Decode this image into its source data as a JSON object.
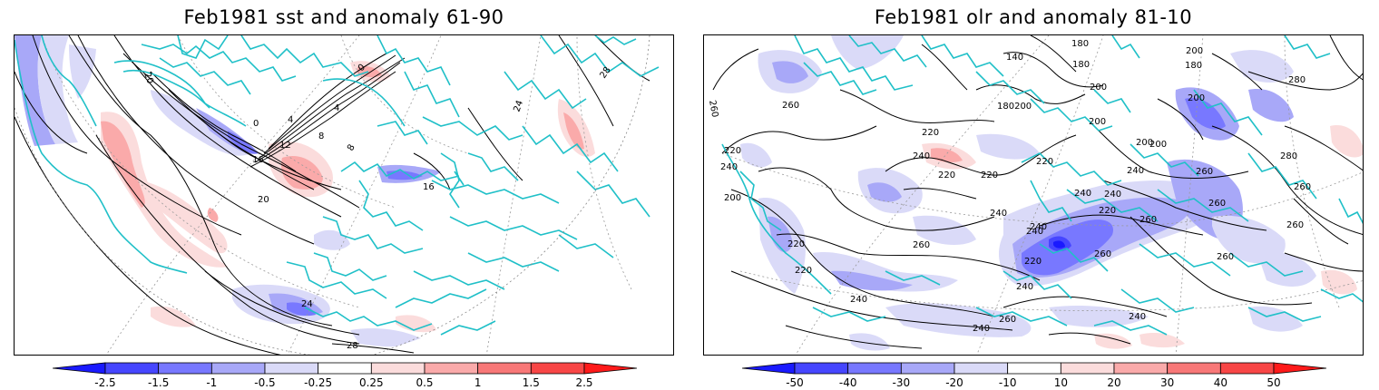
{
  "panels": [
    {
      "title": "Feb1981 sst and anomaly 61-90",
      "contour_labels": [
        "20",
        "0",
        "4",
        "0",
        "4",
        "8",
        "8",
        "12",
        "16",
        "16",
        "20",
        "24",
        "24",
        "28",
        "28"
      ],
      "colorbar": {
        "colors": [
          "#1a1aff",
          "#4646ff",
          "#7878ff",
          "#a8a8f8",
          "#dadaf8",
          "#ffffff",
          "#fbdcdc",
          "#faaaaa",
          "#f87878",
          "#f84646",
          "#ff1a1a"
        ],
        "labels": [
          "-2.5",
          "-1.5",
          "-1",
          "-0.5",
          "-0.25",
          "0.25",
          "0.5",
          "1",
          "1.5",
          "2.5"
        ]
      }
    },
    {
      "title": "Feb1981 olr and anomaly 81-10",
      "contour_labels": [
        "180",
        "140",
        "180",
        "180",
        "200",
        "280",
        "200",
        "200",
        "260",
        "260",
        "180200",
        "200",
        "200",
        "220",
        "220",
        "240",
        "220",
        "240",
        "220",
        "220",
        "200",
        "240",
        "240",
        "240",
        "260",
        "280",
        "200",
        "260",
        "260",
        "220",
        "260",
        "240",
        "240",
        "260",
        "220",
        "220",
        "240",
        "220",
        "260",
        "260",
        "240",
        "240",
        "240",
        "260",
        "240",
        "260"
      ],
      "colorbar": {
        "colors": [
          "#1a1aff",
          "#4646ff",
          "#7878ff",
          "#a8a8f8",
          "#dadaf8",
          "#ffffff",
          "#fbdcdc",
          "#faaaaa",
          "#f87878",
          "#f84646",
          "#ff1a1a"
        ],
        "labels": [
          "-50",
          "-40",
          "-30",
          "-20",
          "-10",
          "10",
          "20",
          "30",
          "40",
          "50"
        ]
      }
    }
  ]
}
